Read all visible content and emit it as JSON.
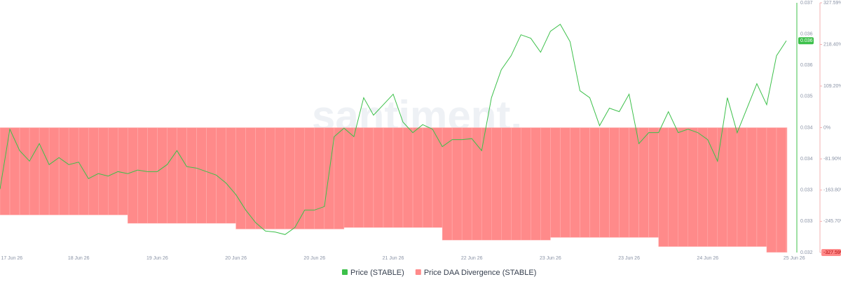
{
  "chart_data": {
    "type": "combo",
    "watermark": "santiment.",
    "price_label": "0.036",
    "xlim": [
      0,
      10
    ],
    "xticks": [
      {
        "value": 0.15,
        "label": "17 Jun 26"
      },
      {
        "value": 1,
        "label": "18 Jun 26"
      },
      {
        "value": 2,
        "label": "19 Jun 26"
      },
      {
        "value": 3,
        "label": "20 Jun 26"
      },
      {
        "value": 4,
        "label": "20 Jun 26"
      },
      {
        "value": 5,
        "label": "21 Jun 26"
      },
      {
        "value": 6,
        "label": "22 Jun 26"
      },
      {
        "value": 7,
        "label": "23 Jun 26"
      },
      {
        "value": 8,
        "label": "23 Jun 26"
      },
      {
        "value": 9,
        "label": "24 Jun 26"
      },
      {
        "value": 10.1,
        "label": "25 Jun 26"
      }
    ],
    "ylim": [
      0.032,
      0.037
    ],
    "yticks": [
      {
        "value": 0.032,
        "label": "0.032"
      },
      {
        "value": 0.032625,
        "label": "0.033"
      },
      {
        "value": 0.03325,
        "label": "0.033"
      },
      {
        "value": 0.033875,
        "label": "0.034"
      },
      {
        "value": 0.0345,
        "label": "0.034"
      },
      {
        "value": 0.035125,
        "label": "0.035"
      },
      {
        "value": 0.03575,
        "label": "0.036"
      },
      {
        "value": 0.036375,
        "label": "0.036"
      },
      {
        "value": 0.037,
        "label": "0.037"
      }
    ],
    "y2lim": [
      -327.59,
      327.59
    ],
    "y2ticks": [
      {
        "value": -327.59,
        "label": "-327.59%"
      },
      {
        "value": -245.7,
        "label": "-245.70%"
      },
      {
        "value": -163.8,
        "label": "-163.80%"
      },
      {
        "value": -81.9,
        "label": "-81.90%"
      },
      {
        "value": 0,
        "label": "0%"
      },
      {
        "value": 109.2,
        "label": "109.20%"
      },
      {
        "value": 218.4,
        "label": "218.40%"
      },
      {
        "value": 327.59,
        "label": "327.59%"
      }
    ],
    "grid": true,
    "x": [
      0,
      0.125,
      0.25,
      0.375,
      0.5,
      0.625,
      0.75,
      0.875,
      1,
      1.125,
      1.25,
      1.375,
      1.5,
      1.625,
      1.75,
      1.875,
      2,
      2.125,
      2.25,
      2.375,
      2.5,
      2.625,
      2.75,
      2.875,
      3,
      3.125,
      3.25,
      3.375,
      3.5,
      3.625,
      3.75,
      3.875,
      4,
      4.125,
      4.25,
      4.375,
      4.5,
      4.625,
      4.75,
      4.875,
      5,
      5.125,
      5.25,
      5.375,
      5.5,
      5.625,
      5.75,
      5.875,
      6,
      6.125,
      6.25,
      6.375,
      6.5,
      6.625,
      6.75,
      6.875,
      7,
      7.125,
      7.25,
      7.375,
      7.5,
      7.625,
      7.75,
      7.875,
      8,
      8.125,
      8.25,
      8.375,
      8.5,
      8.625,
      8.75,
      8.875,
      9,
      9.125,
      9.25,
      9.375,
      9.5,
      9.625,
      9.75,
      9.875,
      10
    ],
    "series": [
      {
        "name": "Price (STABLE)",
        "type": "line",
        "axis": "y",
        "color": "#3cc04a",
        "values": [
          0.03327,
          0.03447,
          0.03404,
          0.03383,
          0.03418,
          0.03376,
          0.0339,
          0.03376,
          0.03381,
          0.03348,
          0.03358,
          0.03353,
          0.03362,
          0.03358,
          0.03365,
          0.03362,
          0.03362,
          0.03376,
          0.03404,
          0.03372,
          0.03369,
          0.03362,
          0.03355,
          0.03339,
          0.03316,
          0.03285,
          0.0326,
          0.03243,
          0.03241,
          0.03236,
          0.0325,
          0.03285,
          0.03285,
          0.03292,
          0.03432,
          0.03449,
          0.03432,
          0.0351,
          0.03475,
          0.03496,
          0.03517,
          0.03461,
          0.0344,
          0.03456,
          0.03447,
          0.03412,
          0.03426,
          0.03426,
          0.03428,
          0.03404,
          0.0351,
          0.03566,
          0.03594,
          0.03636,
          0.03629,
          0.03601,
          0.03643,
          0.03657,
          0.03622,
          0.03524,
          0.0351,
          0.03454,
          0.03489,
          0.03482,
          0.03517,
          0.03418,
          0.0344,
          0.0344,
          0.03482,
          0.0344,
          0.03447,
          0.0344,
          0.03426,
          0.03383,
          0.0351,
          0.0344,
          0.03489,
          0.03538,
          0.03496,
          0.03594,
          0.03624
        ]
      },
      {
        "name": "Price DAA Divergence (STABLE)",
        "type": "bar",
        "axis": "y2",
        "color": "#ff8a8a",
        "values": [
          -229,
          -229,
          -229,
          -229,
          -229,
          -229,
          -229,
          -229,
          -229,
          -229,
          -229,
          -229,
          -229,
          -251,
          -251,
          -251,
          -251,
          -251,
          -251,
          -251,
          -251,
          -251,
          -251,
          -251,
          -266,
          -266,
          -266,
          -266,
          -266,
          -266,
          -266,
          -266,
          -266,
          -266,
          -266,
          -262,
          -262,
          -262,
          -262,
          -262,
          -262,
          -262,
          -262,
          -262,
          -262,
          -295,
          -295,
          -295,
          -295,
          -295,
          -295,
          -295,
          -295,
          -295,
          -295,
          -295,
          -288,
          -288,
          -288,
          -288,
          -288,
          -288,
          -288,
          -288,
          -288,
          -288,
          -288,
          -312,
          -312,
          -312,
          -312,
          -312,
          -312,
          -312,
          -312,
          -312,
          -312,
          -312,
          -327,
          -327,
          -327
        ]
      }
    ]
  }
}
